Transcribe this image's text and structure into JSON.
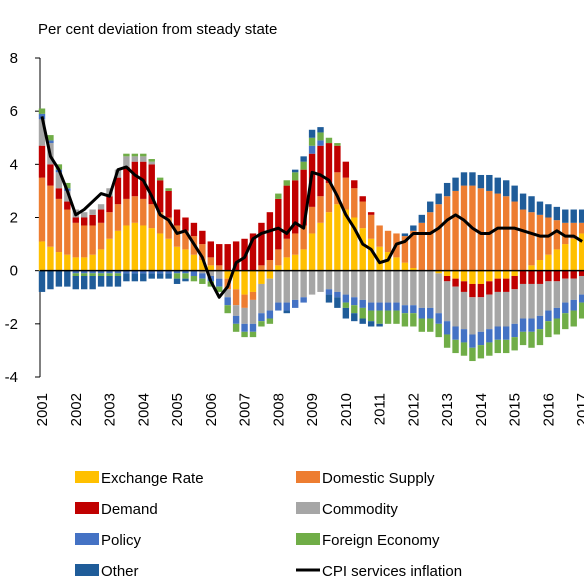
{
  "chart_data": {
    "type": "stacked-bar",
    "ylabel": "Per cent deviation from steady state",
    "categories": [
      "2001",
      null,
      null,
      null,
      "2002",
      null,
      null,
      null,
      "2003",
      null,
      null,
      null,
      "2004",
      null,
      null,
      null,
      "2005",
      null,
      null,
      null,
      "2006",
      null,
      null,
      null,
      "2007",
      null,
      null,
      null,
      "2008",
      null,
      null,
      null,
      "2009",
      null,
      null,
      null,
      "2010",
      null,
      null,
      null,
      "2011",
      null,
      null,
      null,
      "2012",
      null,
      null,
      null,
      "2013",
      null,
      null,
      null,
      "2014",
      null,
      null,
      null,
      "2015",
      null,
      null,
      null,
      "2016",
      null,
      null,
      null,
      "2017"
    ],
    "ylim": [
      -4,
      8
    ],
    "yticks": [
      -4,
      -2,
      0,
      2,
      4,
      6,
      8
    ],
    "series": [
      {
        "name": "Exchange Rate",
        "color": "#FFC000",
        "values": [
          1.1,
          0.9,
          0.7,
          0.6,
          0.5,
          0.5,
          0.6,
          0.8,
          1.2,
          1.5,
          1.7,
          1.8,
          1.7,
          1.6,
          1.4,
          1.2,
          0.9,
          0.8,
          0.6,
          0.4,
          0.2,
          0,
          -0.3,
          -0.7,
          -0.9,
          -0.8,
          -0.5,
          -0.3,
          0.2,
          0.5,
          0.6,
          0.8,
          1.4,
          1.8,
          2.2,
          2.5,
          2.3,
          2.0,
          1.6,
          1.2,
          0.9,
          0.7,
          0.5,
          0.3,
          0.1,
          0,
          0,
          -0.1,
          -0.2,
          -0.3,
          -0.4,
          -0.5,
          -0.5,
          -0.4,
          -0.3,
          -0.3,
          -0.2,
          0,
          0.2,
          0.4,
          0.6,
          0.8,
          1.0,
          1.2,
          1.4
        ]
      },
      {
        "name": "Domestic Supply",
        "color": "#ED7D31",
        "values": [
          2.4,
          2.3,
          2.0,
          1.7,
          1.3,
          1.2,
          1.1,
          1.0,
          1.0,
          1.0,
          1.0,
          1.0,
          1.0,
          0.9,
          0.8,
          0.8,
          0.8,
          0.7,
          0.7,
          0.6,
          0.3,
          0.2,
          -0.4,
          -0.6,
          -0.5,
          -0.3,
          0.2,
          0.4,
          0.6,
          0.7,
          0.8,
          0.9,
          1.0,
          1.0,
          1.1,
          1.2,
          1.2,
          1.1,
          1.0,
          0.9,
          0.8,
          0.8,
          0.9,
          1.0,
          1.4,
          1.8,
          2.2,
          2.5,
          2.8,
          3.0,
          3.2,
          3.2,
          3.1,
          3.0,
          2.9,
          2.8,
          2.6,
          2.3,
          2.0,
          1.7,
          1.4,
          1.1,
          0.8,
          0.6,
          0.4
        ]
      },
      {
        "name": "Demand",
        "color": "#C00000",
        "values": [
          1.2,
          0.8,
          0.4,
          0.3,
          0.2,
          0.3,
          0.4,
          0.5,
          0.6,
          1.0,
          1.2,
          1.3,
          1.4,
          1.5,
          1.2,
          1.0,
          0.6,
          0.5,
          0.5,
          0.5,
          0.6,
          0.8,
          1.0,
          1.1,
          1.2,
          1.4,
          1.6,
          1.8,
          1.9,
          2.0,
          2.0,
          2.1,
          2.0,
          1.9,
          1.5,
          1.0,
          0.6,
          0.3,
          0.2,
          0.1,
          0,
          0,
          0,
          0,
          0,
          0,
          0,
          0,
          -0.2,
          -0.3,
          -0.4,
          -0.5,
          -0.5,
          -0.5,
          -0.5,
          -0.5,
          -0.5,
          -0.5,
          -0.5,
          -0.5,
          -0.4,
          -0.4,
          -0.3,
          -0.3,
          -0.2
        ]
      },
      {
        "name": "Commodity",
        "color": "#A6A6A6",
        "values": [
          1.0,
          0.8,
          0.6,
          0.4,
          0.3,
          0.2,
          0.2,
          0.2,
          0.3,
          0.3,
          0.4,
          0.2,
          0.2,
          0.1,
          0,
          0,
          0,
          0,
          0,
          -0.1,
          -0.2,
          -0.3,
          -0.3,
          -0.4,
          -0.6,
          -0.9,
          -1.1,
          -1.2,
          -1.2,
          -1.2,
          -1.1,
          -1.0,
          -0.9,
          -0.8,
          -0.7,
          -0.8,
          -0.9,
          -1.0,
          -1.1,
          -1.2,
          -1.2,
          -1.2,
          -1.2,
          -1.3,
          -1.3,
          -1.4,
          -1.4,
          -1.5,
          -1.5,
          -1.5,
          -1.4,
          -1.4,
          -1.3,
          -1.3,
          -1.3,
          -1.3,
          -1.3,
          -1.3,
          -1.3,
          -1.2,
          -1.1,
          -1.0,
          -0.9,
          -0.8,
          -0.7
        ]
      },
      {
        "name": "Policy",
        "color": "#4472C4",
        "values": [
          0.2,
          0.1,
          0.1,
          0.1,
          -0.1,
          -0.1,
          -0.1,
          -0.1,
          -0.1,
          -0.1,
          -0.1,
          -0.1,
          -0.1,
          -0.1,
          -0.1,
          -0.1,
          -0.1,
          -0.1,
          -0.2,
          -0.2,
          -0.2,
          -0.3,
          -0.3,
          -0.3,
          -0.3,
          -0.3,
          -0.3,
          -0.3,
          -0.3,
          -0.3,
          -0.3,
          -0.2,
          0.3,
          0.2,
          -0.2,
          -0.2,
          -0.3,
          -0.3,
          -0.3,
          -0.3,
          -0.3,
          -0.3,
          -0.3,
          -0.3,
          -0.3,
          -0.4,
          -0.4,
          -0.4,
          -0.5,
          -0.5,
          -0.5,
          -0.5,
          -0.5,
          -0.5,
          -0.5,
          -0.5,
          -0.5,
          -0.5,
          -0.5,
          -0.5,
          -0.4,
          -0.4,
          -0.4,
          -0.4,
          -0.3
        ]
      },
      {
        "name": "Foreign Economy",
        "color": "#70AD47",
        "values": [
          0.2,
          0.2,
          0.2,
          0.2,
          -0.1,
          -0.1,
          -0.1,
          -0.1,
          -0.1,
          -0.1,
          0.1,
          0.1,
          0.1,
          0.1,
          0.1,
          0.1,
          -0.2,
          -0.2,
          -0.2,
          -0.2,
          -0.2,
          -0.2,
          -0.3,
          -0.3,
          -0.2,
          -0.2,
          -0.2,
          -0.2,
          0.2,
          0.2,
          0.3,
          0.3,
          0.3,
          0.3,
          0.2,
          0.1,
          -0.2,
          -0.3,
          -0.4,
          -0.4,
          -0.5,
          -0.5,
          -0.5,
          -0.5,
          -0.5,
          -0.5,
          -0.5,
          -0.5,
          -0.5,
          -0.5,
          -0.5,
          -0.5,
          -0.5,
          -0.5,
          -0.5,
          -0.5,
          -0.5,
          -0.5,
          -0.6,
          -0.6,
          -0.6,
          -0.6,
          -0.6,
          -0.6,
          -0.6
        ]
      },
      {
        "name": "Other",
        "color": "#1F5C99",
        "values": [
          -0.8,
          -0.7,
          -0.6,
          -0.6,
          -0.5,
          -0.5,
          -0.5,
          -0.4,
          -0.4,
          -0.4,
          -0.3,
          -0.3,
          -0.3,
          -0.2,
          -0.2,
          -0.2,
          -0.2,
          -0.1,
          0,
          0,
          0,
          0,
          0,
          0,
          0,
          0,
          0,
          0,
          0,
          -0.1,
          0.1,
          0.2,
          0.3,
          0.2,
          -0.3,
          -0.4,
          -0.4,
          -0.3,
          -0.2,
          -0.2,
          -0.1,
          0,
          0,
          0.1,
          0.2,
          0.3,
          0.4,
          0.4,
          0.5,
          0.5,
          0.5,
          0.5,
          0.5,
          0.6,
          0.6,
          0.6,
          0.6,
          0.6,
          0.6,
          0.5,
          0.5,
          0.5,
          0.5,
          0.5,
          0.5
        ]
      }
    ],
    "line_series": {
      "name": "CPI services inflation",
      "color": "#000000",
      "values": [
        5.8,
        4.3,
        3.8,
        3.0,
        2.1,
        2.3,
        2.6,
        2.9,
        2.8,
        3.8,
        3.9,
        3.6,
        3.4,
        2.8,
        2.1,
        1.9,
        1.4,
        1.5,
        1.0,
        0.5,
        -0.4,
        -1.0,
        -0.6,
        0.3,
        0.5,
        1.2,
        1.4,
        1.5,
        1.6,
        1.4,
        1.8,
        1.6,
        3.7,
        3.6,
        3.4,
        2.8,
        2.1,
        1.6,
        1.0,
        0.8,
        0.3,
        0.4,
        1.0,
        1.1,
        1.4,
        1.4,
        1.4,
        1.6,
        1.9,
        2.1,
        1.9,
        1.6,
        1.4,
        1.4,
        1.6,
        1.6,
        1.6,
        1.5,
        1.4,
        1.3,
        1.3,
        1.5,
        1.3,
        1.3,
        1.1
      ]
    }
  }
}
